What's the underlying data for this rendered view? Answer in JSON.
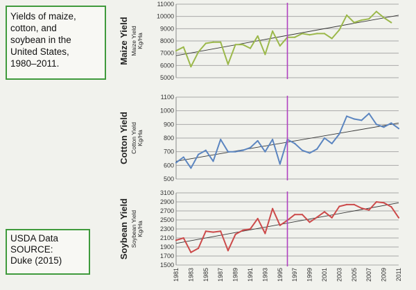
{
  "title_box": {
    "text": "Yields of maize,\ncotton, and\nsoybean in the\nUnited States,\n1980–2011."
  },
  "source_box": {
    "text": "USDA Data\nSOURCE:\nDuke (2015)"
  },
  "chart_data": [
    {
      "type": "line",
      "ylabel": "Maize Yield",
      "ylabel_sub": "Maize Yield\nKg/Ha",
      "ylim": [
        5000,
        11000
      ],
      "yticks": [
        5000,
        6000,
        7000,
        8000,
        9000,
        10000,
        11000
      ],
      "x": [
        1981,
        1982,
        1983,
        1984,
        1985,
        1986,
        1987,
        1988,
        1989,
        1990,
        1991,
        1992,
        1993,
        1994,
        1995,
        1996,
        1997,
        1998,
        1999,
        2000,
        2001,
        2002,
        2003,
        2004,
        2005,
        2006,
        2007,
        2008,
        2009,
        2010,
        2011
      ],
      "series": [
        {
          "values": [
            7200,
            7500,
            5900,
            7100,
            7800,
            7900,
            7900,
            6100,
            7700,
            7700,
            7400,
            8400,
            6900,
            8800,
            7600,
            8300,
            8300,
            8600,
            8500,
            8600,
            8600,
            8200,
            8900,
            10100,
            9500,
            9700,
            9800,
            10400,
            9900,
            9500,
            null
          ],
          "color": "#9bb84a"
        }
      ],
      "trend": {
        "from": [
          1981,
          6800
        ],
        "to": [
          2011,
          10100
        ],
        "color": "#333333"
      },
      "marker_year": 1996,
      "marker_color": "#b040c0",
      "grid": true
    },
    {
      "type": "line",
      "ylabel": "Cotton Yield",
      "ylabel_sub": "Cotton Yield\nKg/Ha",
      "ylim": [
        500,
        1100
      ],
      "yticks": [
        500,
        600,
        700,
        800,
        900,
        1000,
        1100
      ],
      "x": [
        1981,
        1982,
        1983,
        1984,
        1985,
        1986,
        1987,
        1988,
        1989,
        1990,
        1991,
        1992,
        1993,
        1994,
        1995,
        1996,
        1997,
        1998,
        1999,
        2000,
        2001,
        2002,
        2003,
        2004,
        2005,
        2006,
        2007,
        2008,
        2009,
        2010,
        2011
      ],
      "series": [
        {
          "values": [
            620,
            660,
            580,
            680,
            710,
            630,
            790,
            700,
            700,
            710,
            730,
            780,
            700,
            790,
            610,
            790,
            760,
            710,
            690,
            720,
            800,
            760,
            830,
            960,
            940,
            930,
            980,
            900,
            880,
            910,
            870
          ],
          "color": "#5b85c0"
        }
      ],
      "trend": {
        "from": [
          1981,
          630
        ],
        "to": [
          2011,
          910
        ],
        "color": "#333333"
      },
      "marker_year": 1996,
      "marker_color": "#b040c0",
      "grid": true
    },
    {
      "type": "line",
      "ylabel": "Soybean Yield",
      "ylabel_sub": "Soybean Yield\nKg/Ha",
      "ylim": [
        1500,
        3100
      ],
      "yticks": [
        1500,
        1700,
        1900,
        2100,
        2300,
        2500,
        2700,
        2900,
        3100
      ],
      "x": [
        1981,
        1982,
        1983,
        1984,
        1985,
        1986,
        1987,
        1988,
        1989,
        1990,
        1991,
        1992,
        1993,
        1994,
        1995,
        1996,
        1997,
        1998,
        1999,
        2000,
        2001,
        2002,
        2003,
        2004,
        2005,
        2006,
        2007,
        2008,
        2009,
        2010,
        2011
      ],
      "series": [
        {
          "values": [
            2050,
            2100,
            1780,
            1870,
            2250,
            2230,
            2250,
            1820,
            2180,
            2270,
            2300,
            2530,
            2200,
            2750,
            2380,
            2490,
            2620,
            2620,
            2450,
            2560,
            2680,
            2550,
            2800,
            2840,
            2840,
            2760,
            2720,
            2900,
            2880,
            2790,
            2550
          ],
          "color": "#cc4a4a"
        }
      ],
      "trend": {
        "from": [
          1981,
          1980
        ],
        "to": [
          2011,
          2880
        ],
        "color": "#333333"
      },
      "marker_year": 1996,
      "marker_color": "#b040c0",
      "grid": true
    }
  ],
  "x_tick_labels": [
    "1981",
    "1983",
    "1985",
    "1987",
    "1989",
    "1991",
    "1993",
    "1995",
    "1997",
    "1999",
    "2001",
    "2003",
    "2005",
    "2007",
    "2009",
    "2011"
  ]
}
